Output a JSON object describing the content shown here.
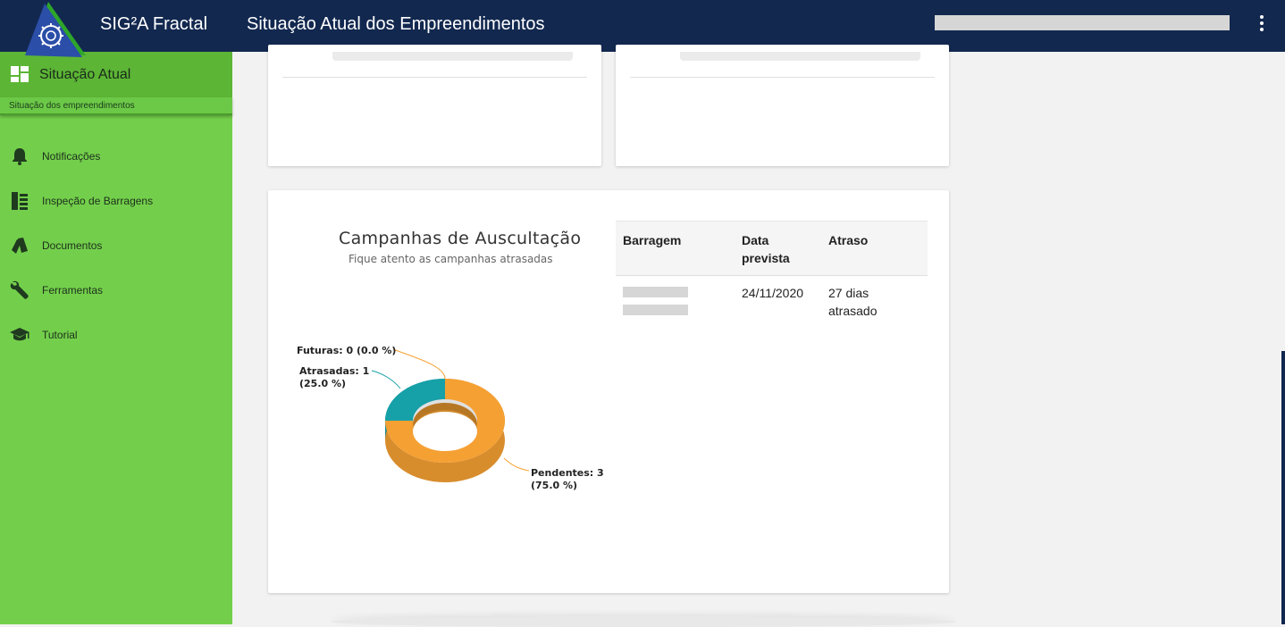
{
  "header": {
    "app_name": "SIG²A Fractal",
    "page_title": "Situação Atual dos Empreendimentos"
  },
  "sidebar": {
    "active": {
      "label": "Situação Atual",
      "sub": "Situação dos empreendimentos",
      "icon": "dashboard-icon"
    },
    "items": [
      {
        "label": "Notificações",
        "icon": "bell-icon"
      },
      {
        "label": "Inspeção de Barragens",
        "icon": "list-icon"
      },
      {
        "label": "Documentos",
        "icon": "documents-icon"
      },
      {
        "label": "Ferramentas",
        "icon": "wrench-icon"
      },
      {
        "label": "Tutorial",
        "icon": "graduation-cap-icon"
      }
    ]
  },
  "campaigns": {
    "title": "Campanhas de Auscultação",
    "subtitle": "Fique atento as campanhas atrasadas",
    "table": {
      "headers": [
        "Barragem",
        "Data prevista",
        "Atraso"
      ],
      "rows": [
        {
          "barragem": "",
          "data_prevista": "24/11/2020",
          "atraso": "27 dias atrasado"
        }
      ]
    }
  },
  "chart_data": {
    "type": "pie",
    "title": "Campanhas de Auscultação",
    "subtitle": "Fique atento as campanhas atrasadas",
    "slices": [
      {
        "name": "Pendentes",
        "value": 3,
        "percent": 75.0,
        "color": "#f5a033",
        "label_line1": "Pendentes: 3",
        "label_line2": "(75.0 %)"
      },
      {
        "name": "Atrasadas",
        "value": 1,
        "percent": 25.0,
        "color": "#16a0a8",
        "label_line1": "Atrasadas: 1",
        "label_line2": "(25.0 %)"
      },
      {
        "name": "Futuras",
        "value": 0,
        "percent": 0.0,
        "color": "#f5a033",
        "label_line1": "Futuras: 0 (0.0 %)",
        "label_line2": ""
      }
    ]
  },
  "colors": {
    "topbar": "#12284f",
    "sidebar": "#73cf4b",
    "sidebar_active": "#5cb535",
    "orange": "#f5a033",
    "teal": "#16a0a8"
  }
}
